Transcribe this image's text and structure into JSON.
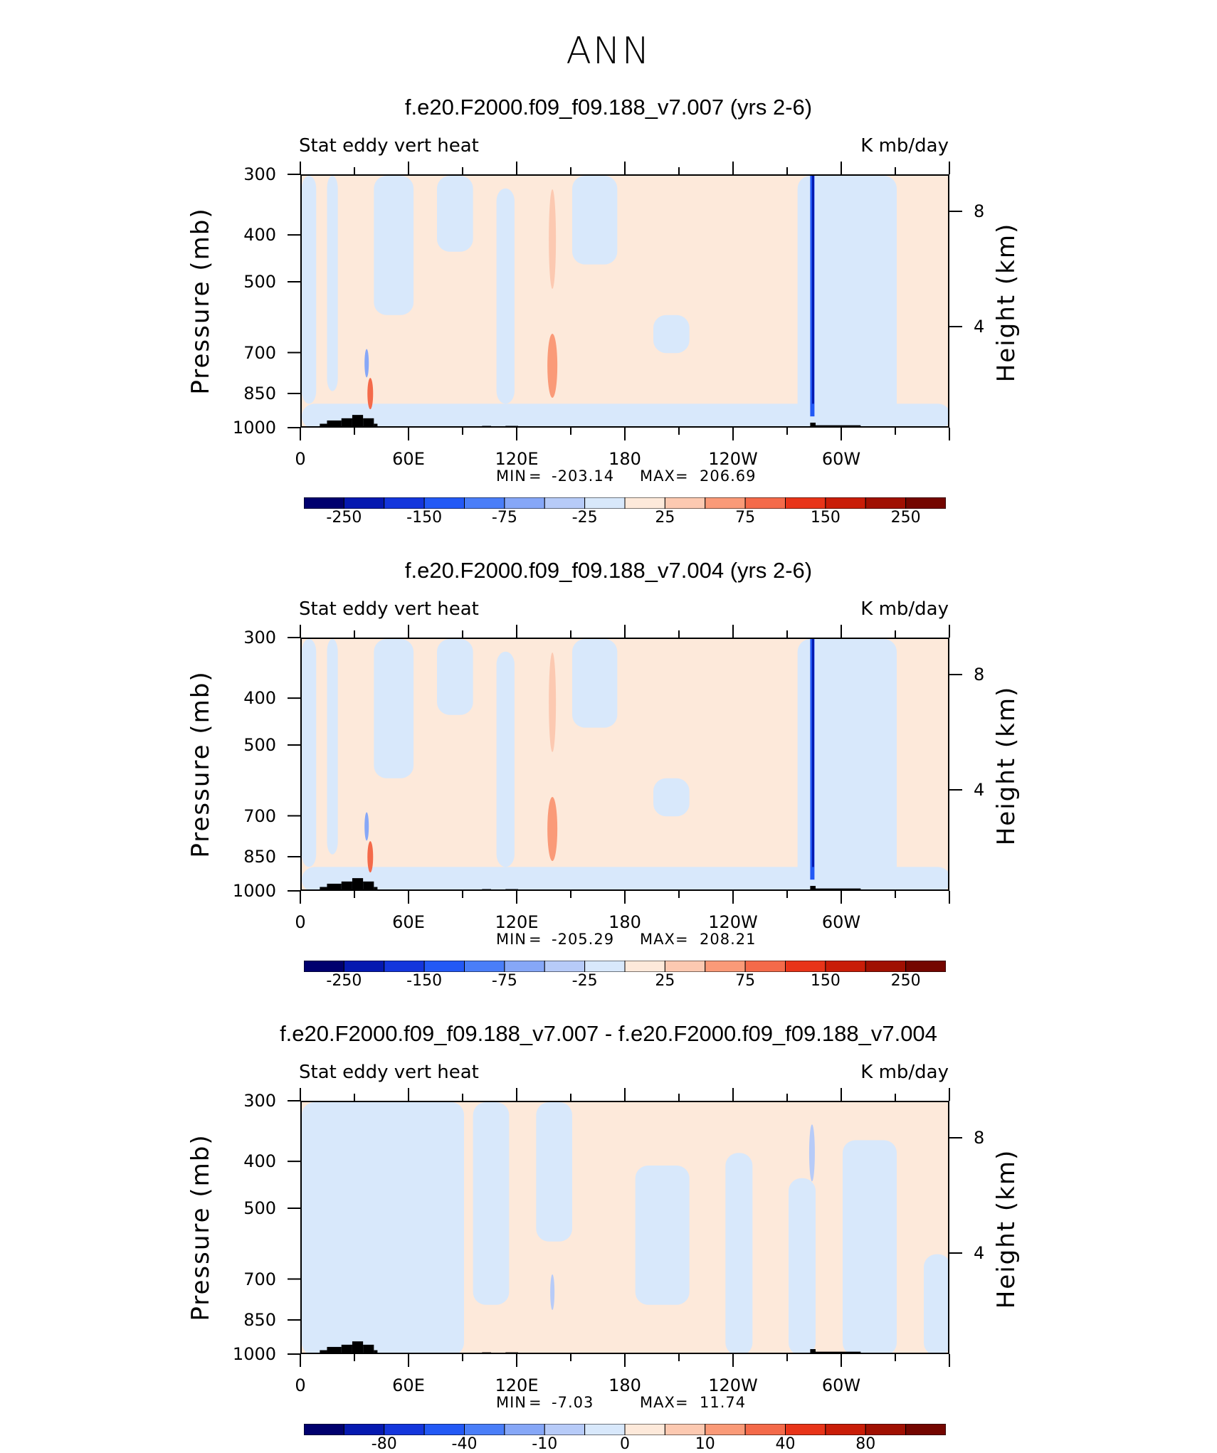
{
  "main_title": "ANN",
  "colors": {
    "palette": [
      "#00006e",
      "#0519b0",
      "#1436dc",
      "#2359f5",
      "#4a7ef8",
      "#86a7f7",
      "#b7cbf8",
      "#d8e8fb",
      "#fde9da",
      "#fcc9b1",
      "#fa9a78",
      "#f46a4a",
      "#e83419",
      "#c91d08",
      "#a01002",
      "#740600"
    ],
    "terrain": "#000000"
  },
  "chart_data": [
    {
      "type": "heatmap",
      "title": "f.e20.F2000.f09_f09.188_v7.007 (yrs 2-6)",
      "left_label": "Stat eddy vert heat",
      "right_label": "K mb/day",
      "ylabel": "Pressure (mb)",
      "ylabel_right": "Height (km)",
      "x_ticks": [
        "0",
        "60E",
        "120E",
        "180",
        "120W",
        "60W"
      ],
      "y_ticks": [
        "300",
        "400",
        "500",
        "700",
        "850",
        "1000"
      ],
      "height_ticks": [
        "8",
        "4"
      ],
      "min_label": "MIN",
      "min_value": "-203.14",
      "max_label": "MAX",
      "max_value": "206.69",
      "colorbar_labels": [
        "-250",
        "-150",
        "-75",
        "-25",
        "25",
        "75",
        "150",
        "250"
      ]
    },
    {
      "type": "heatmap",
      "title": "f.e20.F2000.f09_f09.188_v7.004 (yrs 2-6)",
      "left_label": "Stat eddy vert heat",
      "right_label": "K mb/day",
      "ylabel": "Pressure (mb)",
      "ylabel_right": "Height (km)",
      "x_ticks": [
        "0",
        "60E",
        "120E",
        "180",
        "120W",
        "60W"
      ],
      "y_ticks": [
        "300",
        "400",
        "500",
        "700",
        "850",
        "1000"
      ],
      "height_ticks": [
        "8",
        "4"
      ],
      "min_label": "MIN",
      "min_value": "-205.29",
      "max_label": "MAX",
      "max_value": "208.21",
      "colorbar_labels": [
        "-250",
        "-150",
        "-75",
        "-25",
        "25",
        "75",
        "150",
        "250"
      ]
    },
    {
      "type": "heatmap",
      "title": "f.e20.F2000.f09_f09.188_v7.007 - f.e20.F2000.f09_f09.188_v7.004",
      "left_label": "Stat eddy vert heat",
      "right_label": "K mb/day",
      "ylabel": "Pressure (mb)",
      "ylabel_right": "Height (km)",
      "x_ticks": [
        "0",
        "60E",
        "120E",
        "180",
        "120W",
        "60W"
      ],
      "y_ticks": [
        "300",
        "400",
        "500",
        "700",
        "850",
        "1000"
      ],
      "height_ticks": [
        "8",
        "4"
      ],
      "min_label": "MIN",
      "min_value": "-7.03",
      "max_label": "MAX",
      "max_value": "11.74",
      "colorbar_labels": [
        "-80",
        "-40",
        "-10",
        "0",
        "10",
        "40",
        "80"
      ]
    }
  ]
}
